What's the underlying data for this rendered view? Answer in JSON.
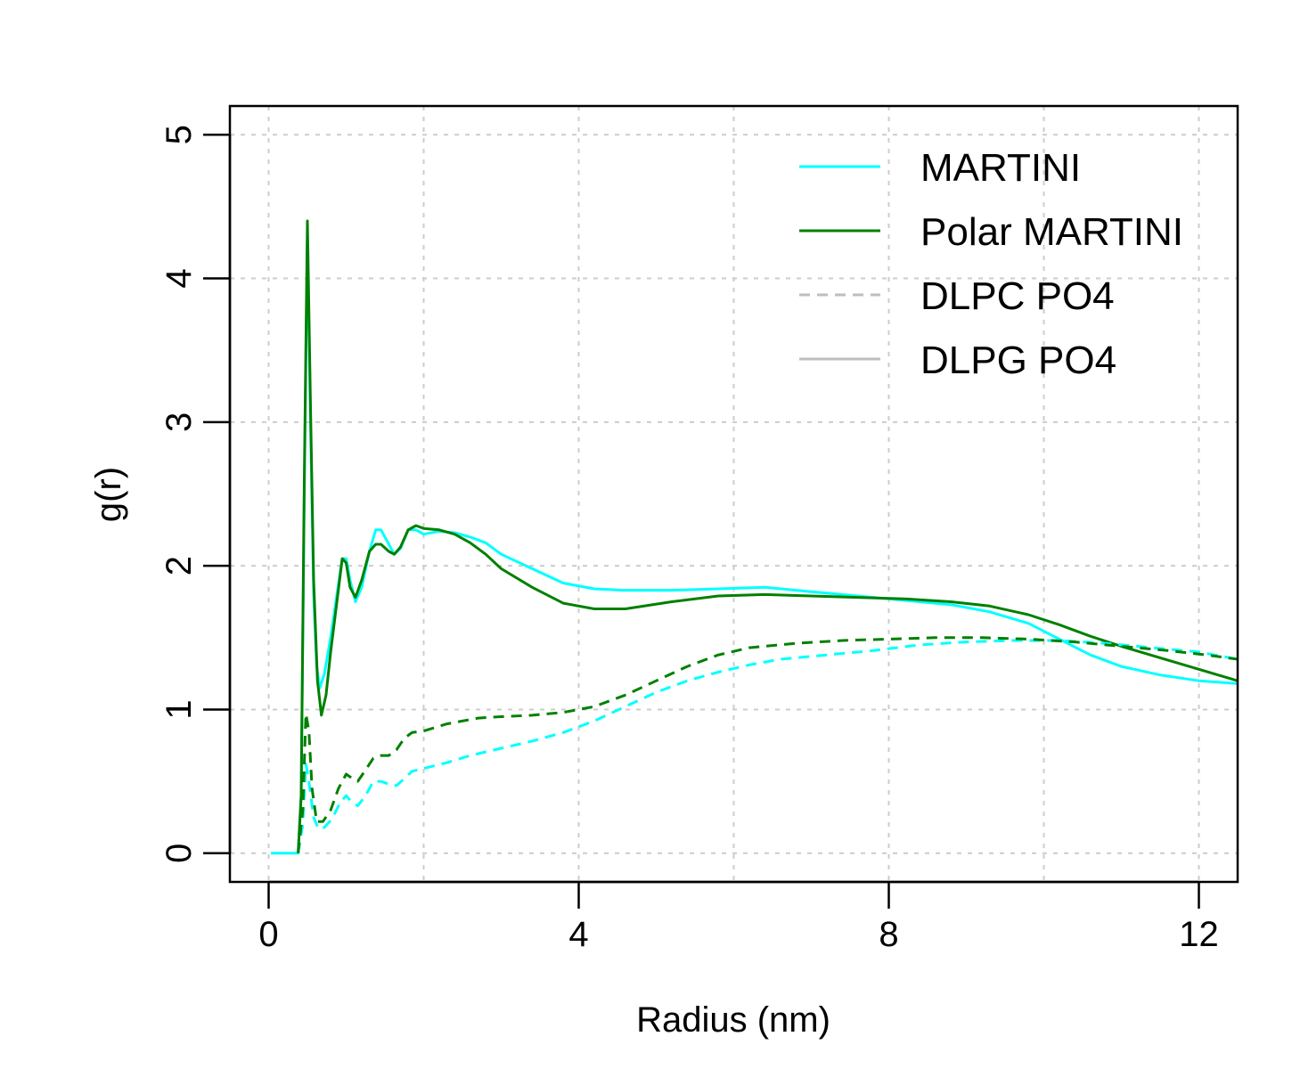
{
  "chart_data": {
    "type": "line",
    "title": "",
    "xlabel": "Radius (nm)",
    "ylabel": "g(r)",
    "xlim": [
      -0.5,
      12.5
    ],
    "ylim": [
      -0.2,
      5.2
    ],
    "xticks": [
      0,
      4,
      8,
      12
    ],
    "yticks": [
      0,
      1,
      2,
      3,
      4,
      5
    ],
    "xgrid": [
      0,
      2,
      4,
      6,
      8,
      10,
      12
    ],
    "ygrid": [
      0,
      1,
      2,
      3,
      4,
      5
    ],
    "grid": true,
    "legend_position": "top-right",
    "legend": [
      {
        "label": "MARTINI",
        "color": "#00FFFF",
        "dash": "solid"
      },
      {
        "label": "Polar MARTINI",
        "color": "#008000",
        "dash": "solid"
      },
      {
        "label": "DLPC PO4",
        "color": "#BEBEBE",
        "dash": "dashed"
      },
      {
        "label": "DLPG PO4",
        "color": "#BEBEBE",
        "dash": "solid"
      }
    ],
    "series": [
      {
        "key": "martini-dlpg",
        "color": "#00FFFF",
        "dash": "solid",
        "points": [
          [
            0.03,
            0
          ],
          [
            0.38,
            0
          ],
          [
            0.42,
            0.4
          ],
          [
            0.46,
            2.5
          ],
          [
            0.5,
            4.3
          ],
          [
            0.54,
            3.0
          ],
          [
            0.58,
            1.8
          ],
          [
            0.62,
            1.3
          ],
          [
            0.66,
            1.15
          ],
          [
            0.72,
            1.25
          ],
          [
            0.8,
            1.5
          ],
          [
            0.88,
            1.8
          ],
          [
            0.95,
            2.05
          ],
          [
            1.0,
            2.05
          ],
          [
            1.05,
            1.9
          ],
          [
            1.12,
            1.75
          ],
          [
            1.2,
            1.85
          ],
          [
            1.3,
            2.1
          ],
          [
            1.38,
            2.25
          ],
          [
            1.45,
            2.25
          ],
          [
            1.55,
            2.15
          ],
          [
            1.62,
            2.08
          ],
          [
            1.7,
            2.12
          ],
          [
            1.8,
            2.25
          ],
          [
            1.9,
            2.25
          ],
          [
            2.0,
            2.22
          ],
          [
            2.2,
            2.24
          ],
          [
            2.4,
            2.23
          ],
          [
            2.6,
            2.2
          ],
          [
            2.8,
            2.16
          ],
          [
            3.0,
            2.08
          ],
          [
            3.4,
            1.98
          ],
          [
            3.8,
            1.88
          ],
          [
            4.2,
            1.84
          ],
          [
            4.6,
            1.83
          ],
          [
            5.2,
            1.83
          ],
          [
            5.8,
            1.84
          ],
          [
            6.4,
            1.85
          ],
          [
            7.0,
            1.82
          ],
          [
            7.6,
            1.79
          ],
          [
            8.2,
            1.76
          ],
          [
            8.8,
            1.73
          ],
          [
            9.3,
            1.68
          ],
          [
            9.8,
            1.6
          ],
          [
            10.2,
            1.49
          ],
          [
            10.6,
            1.38
          ],
          [
            11.0,
            1.3
          ],
          [
            11.5,
            1.24
          ],
          [
            12.0,
            1.2
          ],
          [
            12.5,
            1.18
          ]
        ]
      },
      {
        "key": "polar-martini-dlpg",
        "color": "#008000",
        "dash": "solid",
        "points": [
          [
            0.38,
            0
          ],
          [
            0.42,
            0.4
          ],
          [
            0.46,
            2.6
          ],
          [
            0.5,
            4.4
          ],
          [
            0.54,
            3.1
          ],
          [
            0.58,
            1.9
          ],
          [
            0.63,
            1.2
          ],
          [
            0.68,
            0.96
          ],
          [
            0.74,
            1.1
          ],
          [
            0.8,
            1.4
          ],
          [
            0.88,
            1.75
          ],
          [
            0.95,
            2.05
          ],
          [
            1.0,
            2.02
          ],
          [
            1.05,
            1.85
          ],
          [
            1.12,
            1.78
          ],
          [
            1.2,
            1.9
          ],
          [
            1.3,
            2.1
          ],
          [
            1.38,
            2.15
          ],
          [
            1.45,
            2.15
          ],
          [
            1.55,
            2.1
          ],
          [
            1.62,
            2.08
          ],
          [
            1.7,
            2.13
          ],
          [
            1.8,
            2.25
          ],
          [
            1.9,
            2.28
          ],
          [
            2.0,
            2.26
          ],
          [
            2.2,
            2.25
          ],
          [
            2.4,
            2.22
          ],
          [
            2.6,
            2.16
          ],
          [
            2.8,
            2.08
          ],
          [
            3.0,
            1.98
          ],
          [
            3.4,
            1.85
          ],
          [
            3.8,
            1.74
          ],
          [
            4.2,
            1.7
          ],
          [
            4.6,
            1.7
          ],
          [
            5.2,
            1.75
          ],
          [
            5.8,
            1.79
          ],
          [
            6.4,
            1.8
          ],
          [
            7.0,
            1.79
          ],
          [
            7.6,
            1.78
          ],
          [
            8.2,
            1.77
          ],
          [
            8.8,
            1.75
          ],
          [
            9.3,
            1.72
          ],
          [
            9.8,
            1.66
          ],
          [
            10.2,
            1.59
          ],
          [
            10.6,
            1.51
          ],
          [
            11.0,
            1.44
          ],
          [
            11.5,
            1.36
          ],
          [
            12.0,
            1.28
          ],
          [
            12.5,
            1.2
          ]
        ]
      },
      {
        "key": "martini-dlpc",
        "color": "#00FFFF",
        "dash": "dashed",
        "points": [
          [
            0.38,
            0
          ],
          [
            0.44,
            0.2
          ],
          [
            0.48,
            0.62
          ],
          [
            0.52,
            0.5
          ],
          [
            0.58,
            0.25
          ],
          [
            0.64,
            0.17
          ],
          [
            0.72,
            0.18
          ],
          [
            0.82,
            0.24
          ],
          [
            0.92,
            0.35
          ],
          [
            1.0,
            0.4
          ],
          [
            1.08,
            0.35
          ],
          [
            1.15,
            0.33
          ],
          [
            1.25,
            0.4
          ],
          [
            1.35,
            0.5
          ],
          [
            1.45,
            0.5
          ],
          [
            1.55,
            0.48
          ],
          [
            1.65,
            0.47
          ],
          [
            1.75,
            0.52
          ],
          [
            1.85,
            0.57
          ],
          [
            2.0,
            0.59
          ],
          [
            2.3,
            0.63
          ],
          [
            2.6,
            0.68
          ],
          [
            3.0,
            0.73
          ],
          [
            3.4,
            0.78
          ],
          [
            3.8,
            0.84
          ],
          [
            4.2,
            0.92
          ],
          [
            4.6,
            1.02
          ],
          [
            5.0,
            1.12
          ],
          [
            5.4,
            1.2
          ],
          [
            5.8,
            1.26
          ],
          [
            6.2,
            1.31
          ],
          [
            6.6,
            1.35
          ],
          [
            7.2,
            1.38
          ],
          [
            7.8,
            1.41
          ],
          [
            8.4,
            1.45
          ],
          [
            9.0,
            1.47
          ],
          [
            9.6,
            1.48
          ],
          [
            10.2,
            1.48
          ],
          [
            10.8,
            1.46
          ],
          [
            11.4,
            1.43
          ],
          [
            12.0,
            1.4
          ],
          [
            12.5,
            1.35
          ]
        ]
      },
      {
        "key": "polar-martini-dlpc",
        "color": "#008000",
        "dash": "dashed",
        "points": [
          [
            0.38,
            0
          ],
          [
            0.44,
            0.3
          ],
          [
            0.48,
            0.97
          ],
          [
            0.52,
            0.85
          ],
          [
            0.56,
            0.45
          ],
          [
            0.62,
            0.22
          ],
          [
            0.7,
            0.22
          ],
          [
            0.8,
            0.3
          ],
          [
            0.9,
            0.45
          ],
          [
            1.0,
            0.55
          ],
          [
            1.08,
            0.52
          ],
          [
            1.15,
            0.5
          ],
          [
            1.25,
            0.58
          ],
          [
            1.35,
            0.66
          ],
          [
            1.45,
            0.68
          ],
          [
            1.55,
            0.68
          ],
          [
            1.65,
            0.72
          ],
          [
            1.75,
            0.8
          ],
          [
            1.85,
            0.84
          ],
          [
            2.0,
            0.85
          ],
          [
            2.3,
            0.9
          ],
          [
            2.7,
            0.94
          ],
          [
            3.0,
            0.95
          ],
          [
            3.4,
            0.96
          ],
          [
            3.8,
            0.98
          ],
          [
            4.2,
            1.02
          ],
          [
            4.6,
            1.1
          ],
          [
            5.0,
            1.2
          ],
          [
            5.4,
            1.3
          ],
          [
            5.8,
            1.38
          ],
          [
            6.2,
            1.43
          ],
          [
            6.8,
            1.46
          ],
          [
            7.4,
            1.48
          ],
          [
            8.0,
            1.49
          ],
          [
            8.6,
            1.5
          ],
          [
            9.2,
            1.5
          ],
          [
            9.8,
            1.49
          ],
          [
            10.4,
            1.47
          ],
          [
            11.0,
            1.44
          ],
          [
            11.6,
            1.41
          ],
          [
            12.1,
            1.38
          ],
          [
            12.5,
            1.35
          ]
        ]
      }
    ]
  }
}
